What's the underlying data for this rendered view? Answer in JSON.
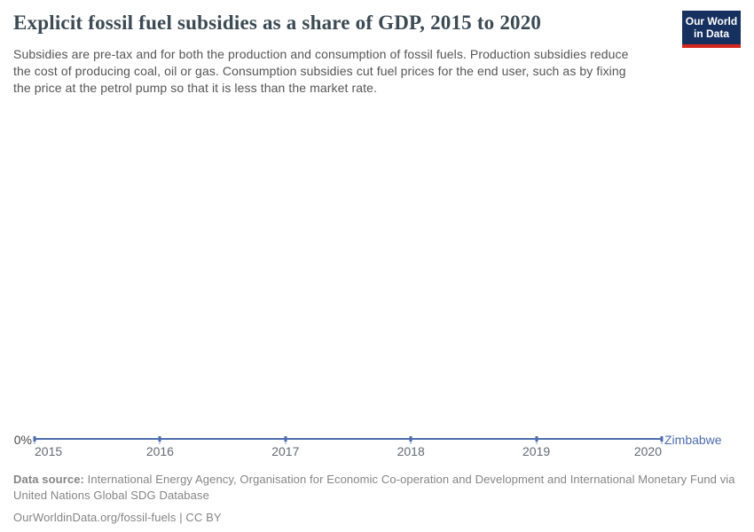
{
  "header": {
    "title": "Explicit fossil fuel subsidies as a share of GDP, 2015 to 2020",
    "subtitle_lines": [
      "Subsidies are pre-tax and for both the production and consumption of fossil fuels. Production subsidies reduce",
      "the cost of producing coal, oil or gas. Consumption subsidies cut fuel prices for the end user, such as by fixing",
      "the price at the petrol pump so that it is less than the market rate."
    ],
    "logo": {
      "line1": "Our World",
      "line2": "in Data"
    }
  },
  "chart_data": {
    "type": "line",
    "title": "Explicit fossil fuel subsidies as a share of GDP, 2015 to 2020",
    "x": [
      "2015",
      "2016",
      "2017",
      "2018",
      "2019",
      "2020"
    ],
    "series": [
      {
        "name": "Zimbabwe",
        "values": [
          0,
          0,
          0,
          0,
          0,
          0
        ],
        "color": "#4d6cae"
      }
    ],
    "unit": "% of GDP",
    "y_axis_tick_labels": [
      "0%"
    ],
    "ylim": [
      0,
      0
    ],
    "grid": false,
    "legend_position": "end-of-line"
  },
  "axis": {
    "y_zero_label": "0%"
  },
  "footer": {
    "data_source_bold": "Data source:",
    "data_source_line1": " International Energy Agency, Organisation for Economic Co-operation and Development and International Monetary Fund via",
    "data_source_line2": "United Nations Global SDG Database",
    "credit": "OurWorldinData.org/fossil-fuels | CC BY"
  },
  "colors": {
    "title_text": "#3c4a54",
    "subtitle_text": "#555555",
    "series_line": "#4d6cae",
    "axis_label_text": "#626c76",
    "footer_text": "#858585",
    "logo_background": "#16315f",
    "logo_stripe": "#d3271e"
  }
}
